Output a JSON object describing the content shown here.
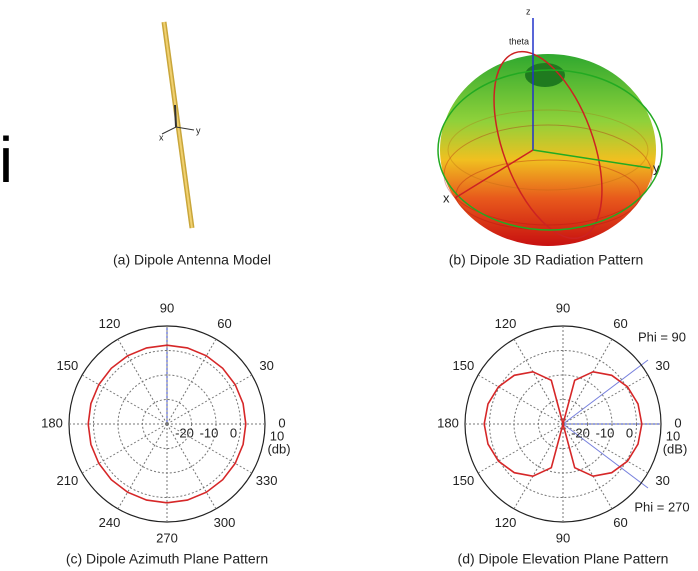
{
  "fragment": "i",
  "panels": [
    {
      "caption": "(a) Dipole Antenna Model",
      "axis_labels": [
        "x",
        "y"
      ]
    },
    {
      "caption": "(b) Dipole 3D Radiation Pattern",
      "axis_labels": [
        "z",
        "y",
        "x"
      ],
      "annotation": "theta"
    }
  ],
  "chart_data": [
    {
      "type": "polar",
      "title": "(c) Dipole Azimuth Plane Pattern",
      "theta": [
        0,
        15,
        30,
        45,
        60,
        75,
        90,
        105,
        120,
        135,
        150,
        165,
        180,
        195,
        210,
        225,
        240,
        255,
        270,
        285,
        300,
        315,
        330,
        345
      ],
      "series": [
        {
          "color": "#d62728",
          "values": [
            2.15,
            2.15,
            2.15,
            2.15,
            2.15,
            2.15,
            2.15,
            2.15,
            2.15,
            2.15,
            2.15,
            2.15,
            2.15,
            2.15,
            2.15,
            2.15,
            2.15,
            2.15,
            2.15,
            2.15,
            2.15,
            2.15,
            2.15,
            2.15
          ]
        }
      ],
      "rlim": [
        -30,
        10
      ],
      "rticks": [
        -20,
        -10,
        0,
        10
      ],
      "r_unit": "(db)",
      "thetaticks": [
        0,
        30,
        60,
        90,
        120,
        150,
        180,
        210,
        240,
        270,
        300,
        330
      ],
      "grid": true
    },
    {
      "type": "polar",
      "title": "(d) Dipole Elevation Plane Pattern",
      "theta": [
        0,
        15,
        30,
        45,
        60,
        75,
        90,
        105,
        120,
        135,
        150,
        165,
        180,
        195,
        210,
        225,
        240,
        255,
        270,
        285,
        300,
        315,
        330,
        345
      ],
      "series": [
        {
          "color": "#d62728",
          "values": [
            2.15,
            1.71,
            0.39,
            -1.89,
            -5.42,
            -11.54,
            -30,
            -11.54,
            -5.42,
            -1.89,
            0.39,
            1.71,
            2.15,
            1.71,
            0.39,
            -1.89,
            -5.42,
            -11.54,
            -30,
            -11.54,
            -5.42,
            -1.89,
            0.39,
            1.71
          ]
        }
      ],
      "rlim": [
        -30,
        10
      ],
      "rticks": [
        -20,
        -10,
        0,
        10
      ],
      "r_unit": "(dB)",
      "thetaticks": [
        0,
        30,
        60,
        90,
        120,
        150,
        180,
        {
          "value": 210,
          "label": "150"
        },
        {
          "value": 240,
          "label": "120"
        },
        {
          "value": 270,
          "label": "90"
        },
        {
          "value": 300,
          "label": "60"
        },
        {
          "value": 330,
          "label": "30"
        }
      ],
      "annotations": [
        "Phi = 90",
        "Phi = 270"
      ],
      "grid": true
    }
  ]
}
